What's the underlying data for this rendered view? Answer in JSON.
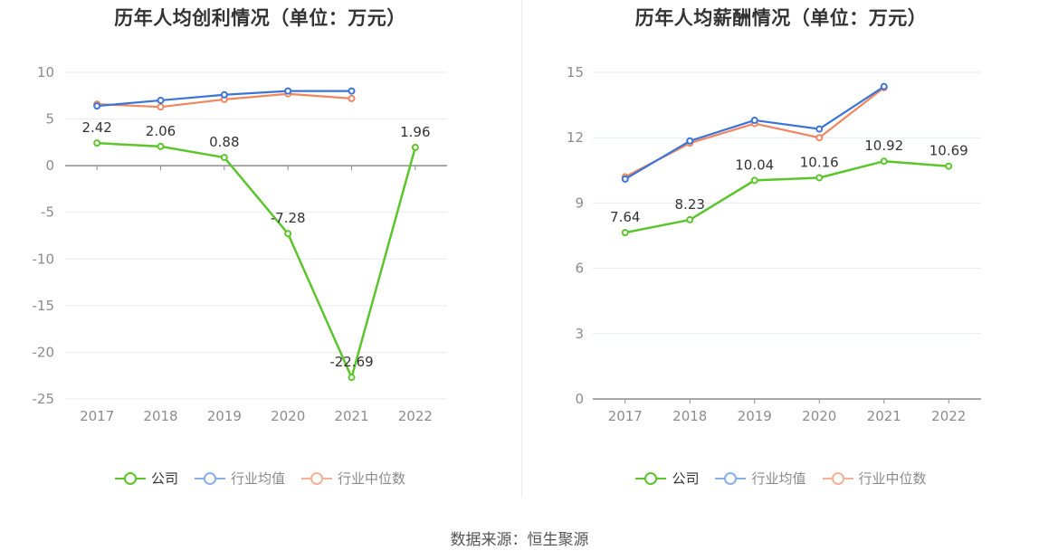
{
  "source_text": "数据来源：恒生聚源",
  "colors": {
    "company": "#5cc52c",
    "industry_avg": "#3b74d8",
    "industry_median": "#f0855f",
    "legend_avg_icon": "#8aaee8",
    "legend_median_icon": "#f5b097",
    "axis": "#8c8c8c",
    "grid": "#e6e9f2",
    "tick_text": "#8c8c8c"
  },
  "chart_data": [
    {
      "type": "line",
      "title": "历年人均创利情况（单位：万元）",
      "categories": [
        "2017",
        "2018",
        "2019",
        "2020",
        "2021",
        "2022"
      ],
      "ylim": [
        -25,
        10
      ],
      "yticks": [
        10,
        5,
        0,
        -5,
        -10,
        -15,
        -20,
        -25
      ],
      "ytick_labels": [
        "10",
        "5",
        "0",
        "-5",
        "-10",
        "-15",
        "-20",
        "-25"
      ],
      "grid": true,
      "legend_position": "bottom",
      "series": [
        {
          "name": "公司",
          "key": "company",
          "values": [
            2.42,
            2.06,
            0.88,
            -7.28,
            -22.69,
            1.96
          ],
          "labels": [
            "2.42",
            "2.06",
            "0.88",
            "-7.28",
            "-22.69",
            "1.96"
          ]
        },
        {
          "name": "行业均值",
          "key": "industry_avg",
          "values": [
            6.4,
            7.0,
            7.6,
            8.0,
            8.0,
            null
          ]
        },
        {
          "name": "行业中位数",
          "key": "industry_median",
          "values": [
            6.6,
            6.3,
            7.1,
            7.7,
            7.2,
            null
          ]
        }
      ]
    },
    {
      "type": "line",
      "title": "历年人均薪酬情况（单位：万元）",
      "categories": [
        "2017",
        "2018",
        "2019",
        "2020",
        "2021",
        "2022"
      ],
      "ylim": [
        0,
        15
      ],
      "yticks": [
        15,
        12,
        9,
        6,
        3,
        0
      ],
      "ytick_labels": [
        "15",
        "12",
        "9",
        "6",
        "3",
        "0"
      ],
      "grid": true,
      "legend_position": "bottom",
      "series": [
        {
          "name": "公司",
          "key": "company",
          "values": [
            7.64,
            8.23,
            10.04,
            10.16,
            10.92,
            10.69
          ],
          "labels": [
            "7.64",
            "8.23",
            "10.04",
            "10.16",
            "10.92",
            "10.69"
          ]
        },
        {
          "name": "行业均值",
          "key": "industry_avg",
          "values": [
            10.1,
            11.85,
            12.8,
            12.4,
            14.35,
            null
          ]
        },
        {
          "name": "行业中位数",
          "key": "industry_median",
          "values": [
            10.2,
            11.75,
            12.65,
            12.0,
            14.3,
            null
          ]
        }
      ]
    }
  ]
}
